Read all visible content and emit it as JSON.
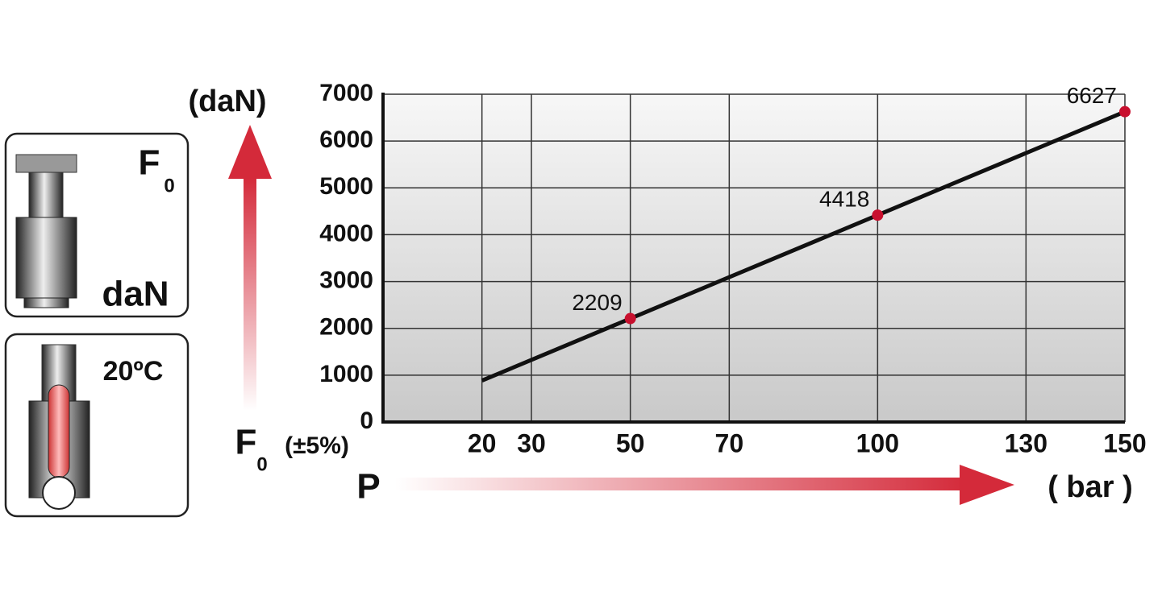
{
  "chart_data": {
    "type": "line",
    "y_label": "(daN)",
    "y_caption": {
      "symbol": "F",
      "subscript": "0",
      "note": "(±5%)"
    },
    "x_label": "P",
    "x_unit": "( bar )",
    "xlim": [
      0,
      150
    ],
    "xticks": [
      20,
      30,
      50,
      70,
      100,
      130,
      150
    ],
    "ylim": [
      0,
      7000
    ],
    "yticks": [
      0,
      1000,
      2000,
      3000,
      4000,
      5000,
      6000,
      7000
    ],
    "grid": true,
    "series": [
      {
        "color": "#111111",
        "marker": "none",
        "x": [
          20,
          150
        ],
        "values": [
          884,
          6627
        ]
      },
      {
        "color": "#c8102e",
        "marker": "dot",
        "data_labels": true,
        "x": [
          50,
          100,
          150
        ],
        "values": [
          2209,
          4418,
          6627
        ]
      }
    ]
  },
  "panels": {
    "force": {
      "symbol": "F",
      "subscript": "0",
      "unit": "daN"
    },
    "temperature": "20ºC"
  }
}
